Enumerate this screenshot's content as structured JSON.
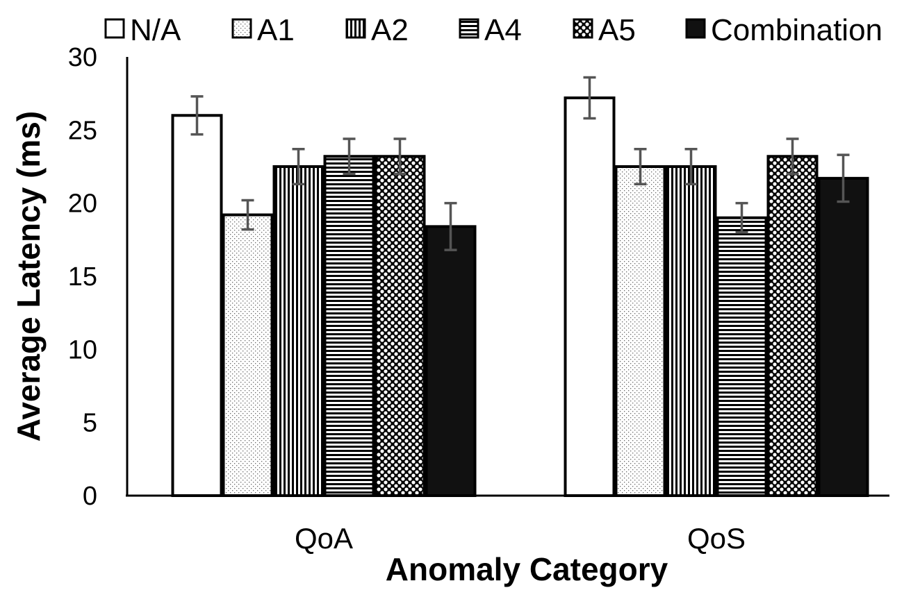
{
  "chart_data": {
    "type": "bar",
    "title": "",
    "xlabel": "Anomaly Category",
    "ylabel": "Average Latency (ms)",
    "categories": [
      "QoA",
      "QoS"
    ],
    "ylim": [
      0,
      30
    ],
    "yticks": [
      0,
      5,
      10,
      15,
      20,
      25,
      30
    ],
    "legend_position": "top",
    "grid": false,
    "series": [
      {
        "name": "N/A",
        "pattern": "blank",
        "values": [
          26.0,
          27.2
        ],
        "errors": [
          1.3,
          1.4
        ]
      },
      {
        "name": "A1",
        "pattern": "dots",
        "values": [
          19.2,
          22.5
        ],
        "errors": [
          1.0,
          1.2
        ]
      },
      {
        "name": "A2",
        "pattern": "vertical-lines",
        "values": [
          22.5,
          22.5
        ],
        "errors": [
          1.2,
          1.2
        ]
      },
      {
        "name": "A4",
        "pattern": "horizontal-lines",
        "values": [
          23.2,
          19.0
        ],
        "errors": [
          1.2,
          1.0
        ]
      },
      {
        "name": "A5",
        "pattern": "checker",
        "values": [
          23.2,
          23.2
        ],
        "errors": [
          1.2,
          1.2
        ]
      },
      {
        "name": "Combination",
        "pattern": "solid",
        "values": [
          18.4,
          21.7
        ],
        "errors": [
          1.6,
          1.6
        ]
      }
    ],
    "colors": {
      "bar_stroke": "#000000",
      "solid_fill": "#111111",
      "errorbar": "#555555",
      "axis": "#000000"
    }
  }
}
